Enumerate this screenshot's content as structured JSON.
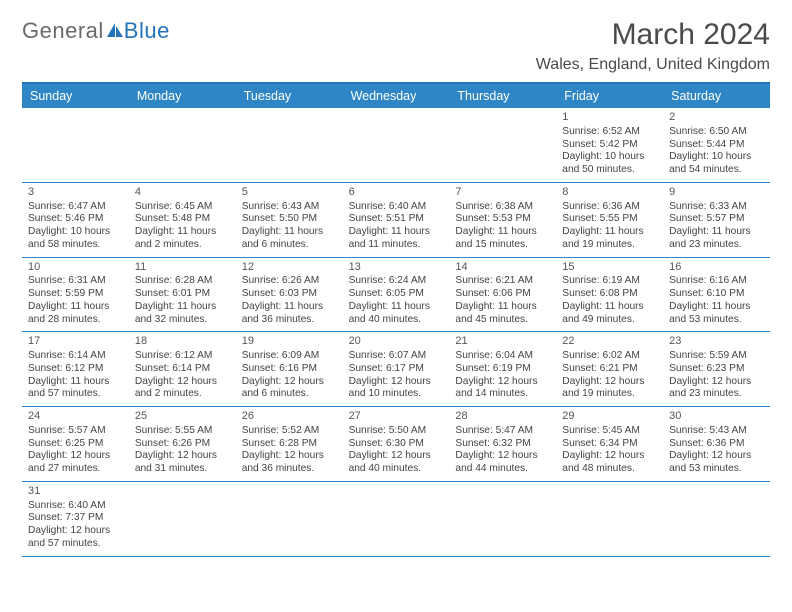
{
  "logo": {
    "text1": "General",
    "text2": "Blue"
  },
  "title": "March 2024",
  "location": "Wales, England, United Kingdom",
  "header_bg": "#2f86c6",
  "header_rule": "#2374bb",
  "weekday_labels": [
    "Sunday",
    "Monday",
    "Tuesday",
    "Wednesday",
    "Thursday",
    "Friday",
    "Saturday"
  ],
  "weeks": [
    [
      {
        "blank": true
      },
      {
        "blank": true
      },
      {
        "blank": true
      },
      {
        "blank": true
      },
      {
        "blank": true
      },
      {
        "day": "1",
        "sunrise": "Sunrise: 6:52 AM",
        "sunset": "Sunset: 5:42 PM",
        "daylight": "Daylight: 10 hours and 50 minutes."
      },
      {
        "day": "2",
        "sunrise": "Sunrise: 6:50 AM",
        "sunset": "Sunset: 5:44 PM",
        "daylight": "Daylight: 10 hours and 54 minutes."
      }
    ],
    [
      {
        "day": "3",
        "sunrise": "Sunrise: 6:47 AM",
        "sunset": "Sunset: 5:46 PM",
        "daylight": "Daylight: 10 hours and 58 minutes."
      },
      {
        "day": "4",
        "sunrise": "Sunrise: 6:45 AM",
        "sunset": "Sunset: 5:48 PM",
        "daylight": "Daylight: 11 hours and 2 minutes."
      },
      {
        "day": "5",
        "sunrise": "Sunrise: 6:43 AM",
        "sunset": "Sunset: 5:50 PM",
        "daylight": "Daylight: 11 hours and 6 minutes."
      },
      {
        "day": "6",
        "sunrise": "Sunrise: 6:40 AM",
        "sunset": "Sunset: 5:51 PM",
        "daylight": "Daylight: 11 hours and 11 minutes."
      },
      {
        "day": "7",
        "sunrise": "Sunrise: 6:38 AM",
        "sunset": "Sunset: 5:53 PM",
        "daylight": "Daylight: 11 hours and 15 minutes."
      },
      {
        "day": "8",
        "sunrise": "Sunrise: 6:36 AM",
        "sunset": "Sunset: 5:55 PM",
        "daylight": "Daylight: 11 hours and 19 minutes."
      },
      {
        "day": "9",
        "sunrise": "Sunrise: 6:33 AM",
        "sunset": "Sunset: 5:57 PM",
        "daylight": "Daylight: 11 hours and 23 minutes."
      }
    ],
    [
      {
        "day": "10",
        "sunrise": "Sunrise: 6:31 AM",
        "sunset": "Sunset: 5:59 PM",
        "daylight": "Daylight: 11 hours and 28 minutes."
      },
      {
        "day": "11",
        "sunrise": "Sunrise: 6:28 AM",
        "sunset": "Sunset: 6:01 PM",
        "daylight": "Daylight: 11 hours and 32 minutes."
      },
      {
        "day": "12",
        "sunrise": "Sunrise: 6:26 AM",
        "sunset": "Sunset: 6:03 PM",
        "daylight": "Daylight: 11 hours and 36 minutes."
      },
      {
        "day": "13",
        "sunrise": "Sunrise: 6:24 AM",
        "sunset": "Sunset: 6:05 PM",
        "daylight": "Daylight: 11 hours and 40 minutes."
      },
      {
        "day": "14",
        "sunrise": "Sunrise: 6:21 AM",
        "sunset": "Sunset: 6:06 PM",
        "daylight": "Daylight: 11 hours and 45 minutes."
      },
      {
        "day": "15",
        "sunrise": "Sunrise: 6:19 AM",
        "sunset": "Sunset: 6:08 PM",
        "daylight": "Daylight: 11 hours and 49 minutes."
      },
      {
        "day": "16",
        "sunrise": "Sunrise: 6:16 AM",
        "sunset": "Sunset: 6:10 PM",
        "daylight": "Daylight: 11 hours and 53 minutes."
      }
    ],
    [
      {
        "day": "17",
        "sunrise": "Sunrise: 6:14 AM",
        "sunset": "Sunset: 6:12 PM",
        "daylight": "Daylight: 11 hours and 57 minutes."
      },
      {
        "day": "18",
        "sunrise": "Sunrise: 6:12 AM",
        "sunset": "Sunset: 6:14 PM",
        "daylight": "Daylight: 12 hours and 2 minutes."
      },
      {
        "day": "19",
        "sunrise": "Sunrise: 6:09 AM",
        "sunset": "Sunset: 6:16 PM",
        "daylight": "Daylight: 12 hours and 6 minutes."
      },
      {
        "day": "20",
        "sunrise": "Sunrise: 6:07 AM",
        "sunset": "Sunset: 6:17 PM",
        "daylight": "Daylight: 12 hours and 10 minutes."
      },
      {
        "day": "21",
        "sunrise": "Sunrise: 6:04 AM",
        "sunset": "Sunset: 6:19 PM",
        "daylight": "Daylight: 12 hours and 14 minutes."
      },
      {
        "day": "22",
        "sunrise": "Sunrise: 6:02 AM",
        "sunset": "Sunset: 6:21 PM",
        "daylight": "Daylight: 12 hours and 19 minutes."
      },
      {
        "day": "23",
        "sunrise": "Sunrise: 5:59 AM",
        "sunset": "Sunset: 6:23 PM",
        "daylight": "Daylight: 12 hours and 23 minutes."
      }
    ],
    [
      {
        "day": "24",
        "sunrise": "Sunrise: 5:57 AM",
        "sunset": "Sunset: 6:25 PM",
        "daylight": "Daylight: 12 hours and 27 minutes."
      },
      {
        "day": "25",
        "sunrise": "Sunrise: 5:55 AM",
        "sunset": "Sunset: 6:26 PM",
        "daylight": "Daylight: 12 hours and 31 minutes."
      },
      {
        "day": "26",
        "sunrise": "Sunrise: 5:52 AM",
        "sunset": "Sunset: 6:28 PM",
        "daylight": "Daylight: 12 hours and 36 minutes."
      },
      {
        "day": "27",
        "sunrise": "Sunrise: 5:50 AM",
        "sunset": "Sunset: 6:30 PM",
        "daylight": "Daylight: 12 hours and 40 minutes."
      },
      {
        "day": "28",
        "sunrise": "Sunrise: 5:47 AM",
        "sunset": "Sunset: 6:32 PM",
        "daylight": "Daylight: 12 hours and 44 minutes."
      },
      {
        "day": "29",
        "sunrise": "Sunrise: 5:45 AM",
        "sunset": "Sunset: 6:34 PM",
        "daylight": "Daylight: 12 hours and 48 minutes."
      },
      {
        "day": "30",
        "sunrise": "Sunrise: 5:43 AM",
        "sunset": "Sunset: 6:36 PM",
        "daylight": "Daylight: 12 hours and 53 minutes."
      }
    ],
    [
      {
        "day": "31",
        "sunrise": "Sunrise: 6:40 AM",
        "sunset": "Sunset: 7:37 PM",
        "daylight": "Daylight: 12 hours and 57 minutes."
      },
      {
        "blank": true
      },
      {
        "blank": true
      },
      {
        "blank": true
      },
      {
        "blank": true
      },
      {
        "blank": true
      },
      {
        "blank": true
      }
    ]
  ]
}
